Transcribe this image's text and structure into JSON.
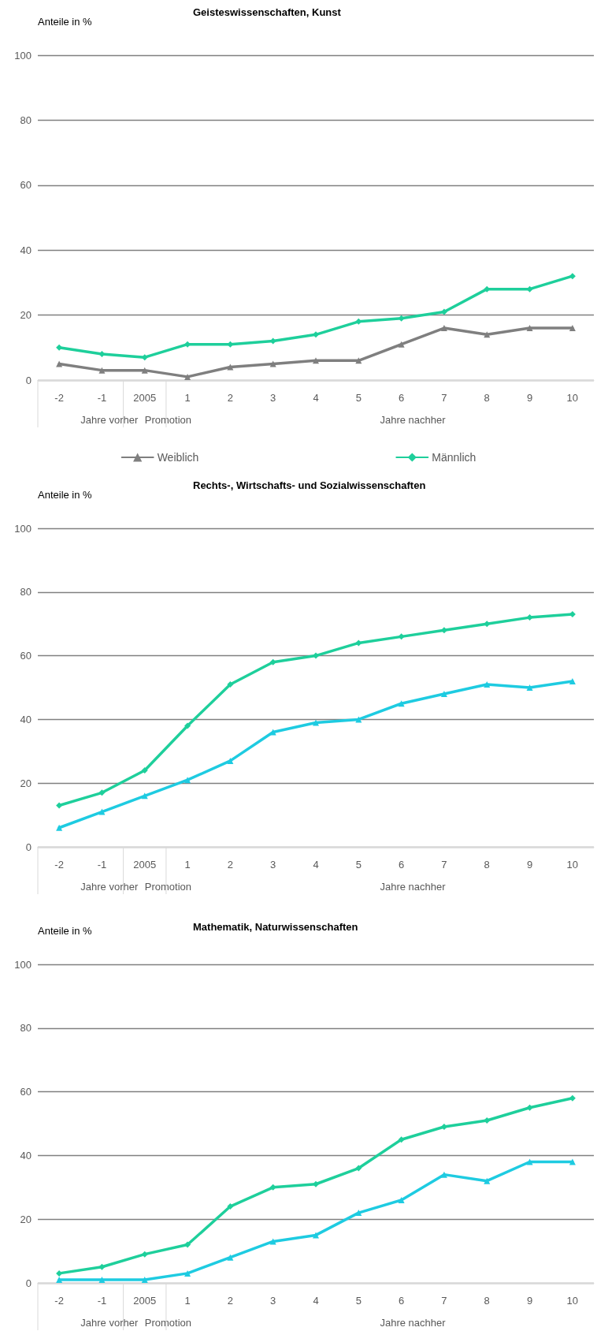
{
  "chart_data": [
    {
      "type": "line",
      "title": "Geisteswissenschaften, Kunst",
      "ylabel": "Anteile in %",
      "categories": [
        "-2",
        "-1",
        "2005",
        "1",
        "2",
        "3",
        "4",
        "5",
        "6",
        "7",
        "8",
        "9",
        "10"
      ],
      "series": [
        {
          "name": "Weiblich",
          "color": "#7f7f7f",
          "marker": "triangle",
          "values": [
            5,
            3,
            3,
            1,
            4,
            5,
            6,
            6,
            11,
            16,
            14,
            16,
            16
          ]
        },
        {
          "name": "Männlich",
          "color": "#1ecf9b",
          "marker": "diamond",
          "values": [
            10,
            8,
            7,
            11,
            11,
            12,
            14,
            18,
            19,
            21,
            28,
            28,
            32
          ]
        }
      ],
      "ylim": [
        0,
        100
      ],
      "yticks": [
        0,
        20,
        40,
        60,
        80,
        100
      ],
      "grid": "y",
      "legend": "bottom",
      "annotations": [
        "Jahre vorher",
        "Promotion",
        "Jahre nachher"
      ]
    },
    {
      "type": "line",
      "title": "Rechts-, Wirtschafts- und Sozialwissenschaften",
      "ylabel": "Anteile in %",
      "categories": [
        "-2",
        "-1",
        "2005",
        "1",
        "2",
        "3",
        "4",
        "5",
        "6",
        "7",
        "8",
        "9",
        "10"
      ],
      "series": [
        {
          "color": "#1ecbe1",
          "marker": "triangle",
          "values": [
            6,
            11,
            16,
            21,
            27,
            36,
            39,
            40,
            45,
            48,
            51,
            50,
            52
          ]
        },
        {
          "color": "#1ecf9b",
          "marker": "diamond",
          "values": [
            13,
            17,
            24,
            38,
            51,
            58,
            60,
            64,
            66,
            68,
            70,
            72,
            73
          ]
        }
      ],
      "ylim": [
        0,
        100
      ],
      "yticks": [
        0,
        20,
        40,
        60,
        80,
        100
      ],
      "grid": "y",
      "annotations": [
        "Jahre vorher",
        "Promotion",
        "Jahre nachher"
      ]
    },
    {
      "type": "line",
      "title": "Mathematik, Naturwissenschaften",
      "ylabel": "Anteile in %",
      "categories": [
        "-2",
        "-1",
        "2005",
        "1",
        "2",
        "3",
        "4",
        "5",
        "6",
        "7",
        "8",
        "9",
        "10"
      ],
      "series": [
        {
          "color": "#1ecbe1",
          "marker": "triangle",
          "values": [
            1,
            1,
            1,
            3,
            8,
            13,
            15,
            22,
            26,
            34,
            32,
            38,
            38
          ]
        },
        {
          "color": "#1ecf9b",
          "marker": "diamond",
          "values": [
            3,
            5,
            9,
            12,
            24,
            30,
            31,
            36,
            45,
            49,
            51,
            55,
            58
          ]
        }
      ],
      "ylim": [
        0,
        100
      ],
      "yticks": [
        0,
        20,
        40,
        60,
        80,
        100
      ],
      "grid": "y",
      "annotations": [
        "Jahre vorher",
        "Promotion",
        "Jahre nachher"
      ]
    }
  ]
}
